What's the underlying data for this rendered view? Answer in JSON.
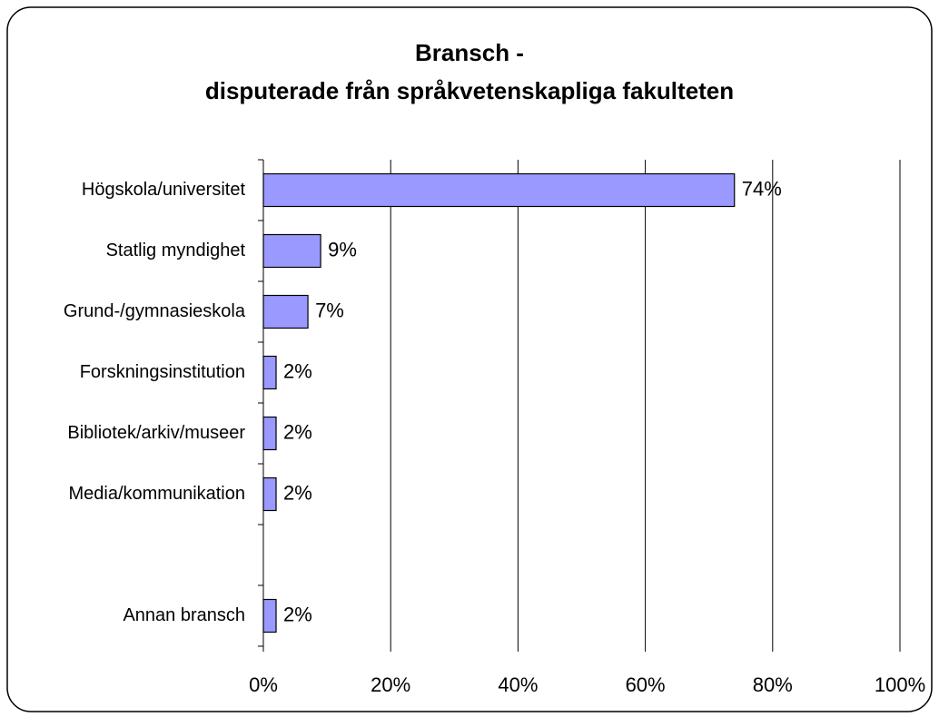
{
  "chart_data": {
    "type": "bar",
    "orientation": "horizontal",
    "title": [
      "Bransch -",
      "disputerade från språkvetenskapliga fakulteten"
    ],
    "categories": [
      "Högskola/universitet",
      "Statlig myndighet",
      "Grund-/gymnasieskola",
      "Forskningsinstitution",
      "Bibliotek/arkiv/museer",
      "Media/kommunikation",
      null,
      "Annan bransch"
    ],
    "values": [
      74,
      9,
      7,
      2,
      2,
      2,
      null,
      2
    ],
    "value_labels": [
      "74%",
      "9%",
      "7%",
      "2%",
      "2%",
      "2%",
      null,
      "2%"
    ],
    "color": "#9999ff",
    "xlim": [
      0,
      100
    ],
    "xticks": [
      {
        "value": 0,
        "label": "0%"
      },
      {
        "value": 20,
        "label": "20%"
      },
      {
        "value": 40,
        "label": "40%"
      },
      {
        "value": 60,
        "label": "60%"
      },
      {
        "value": 80,
        "label": "80%"
      },
      {
        "value": 100,
        "label": "100%"
      }
    ],
    "grid": true
  }
}
